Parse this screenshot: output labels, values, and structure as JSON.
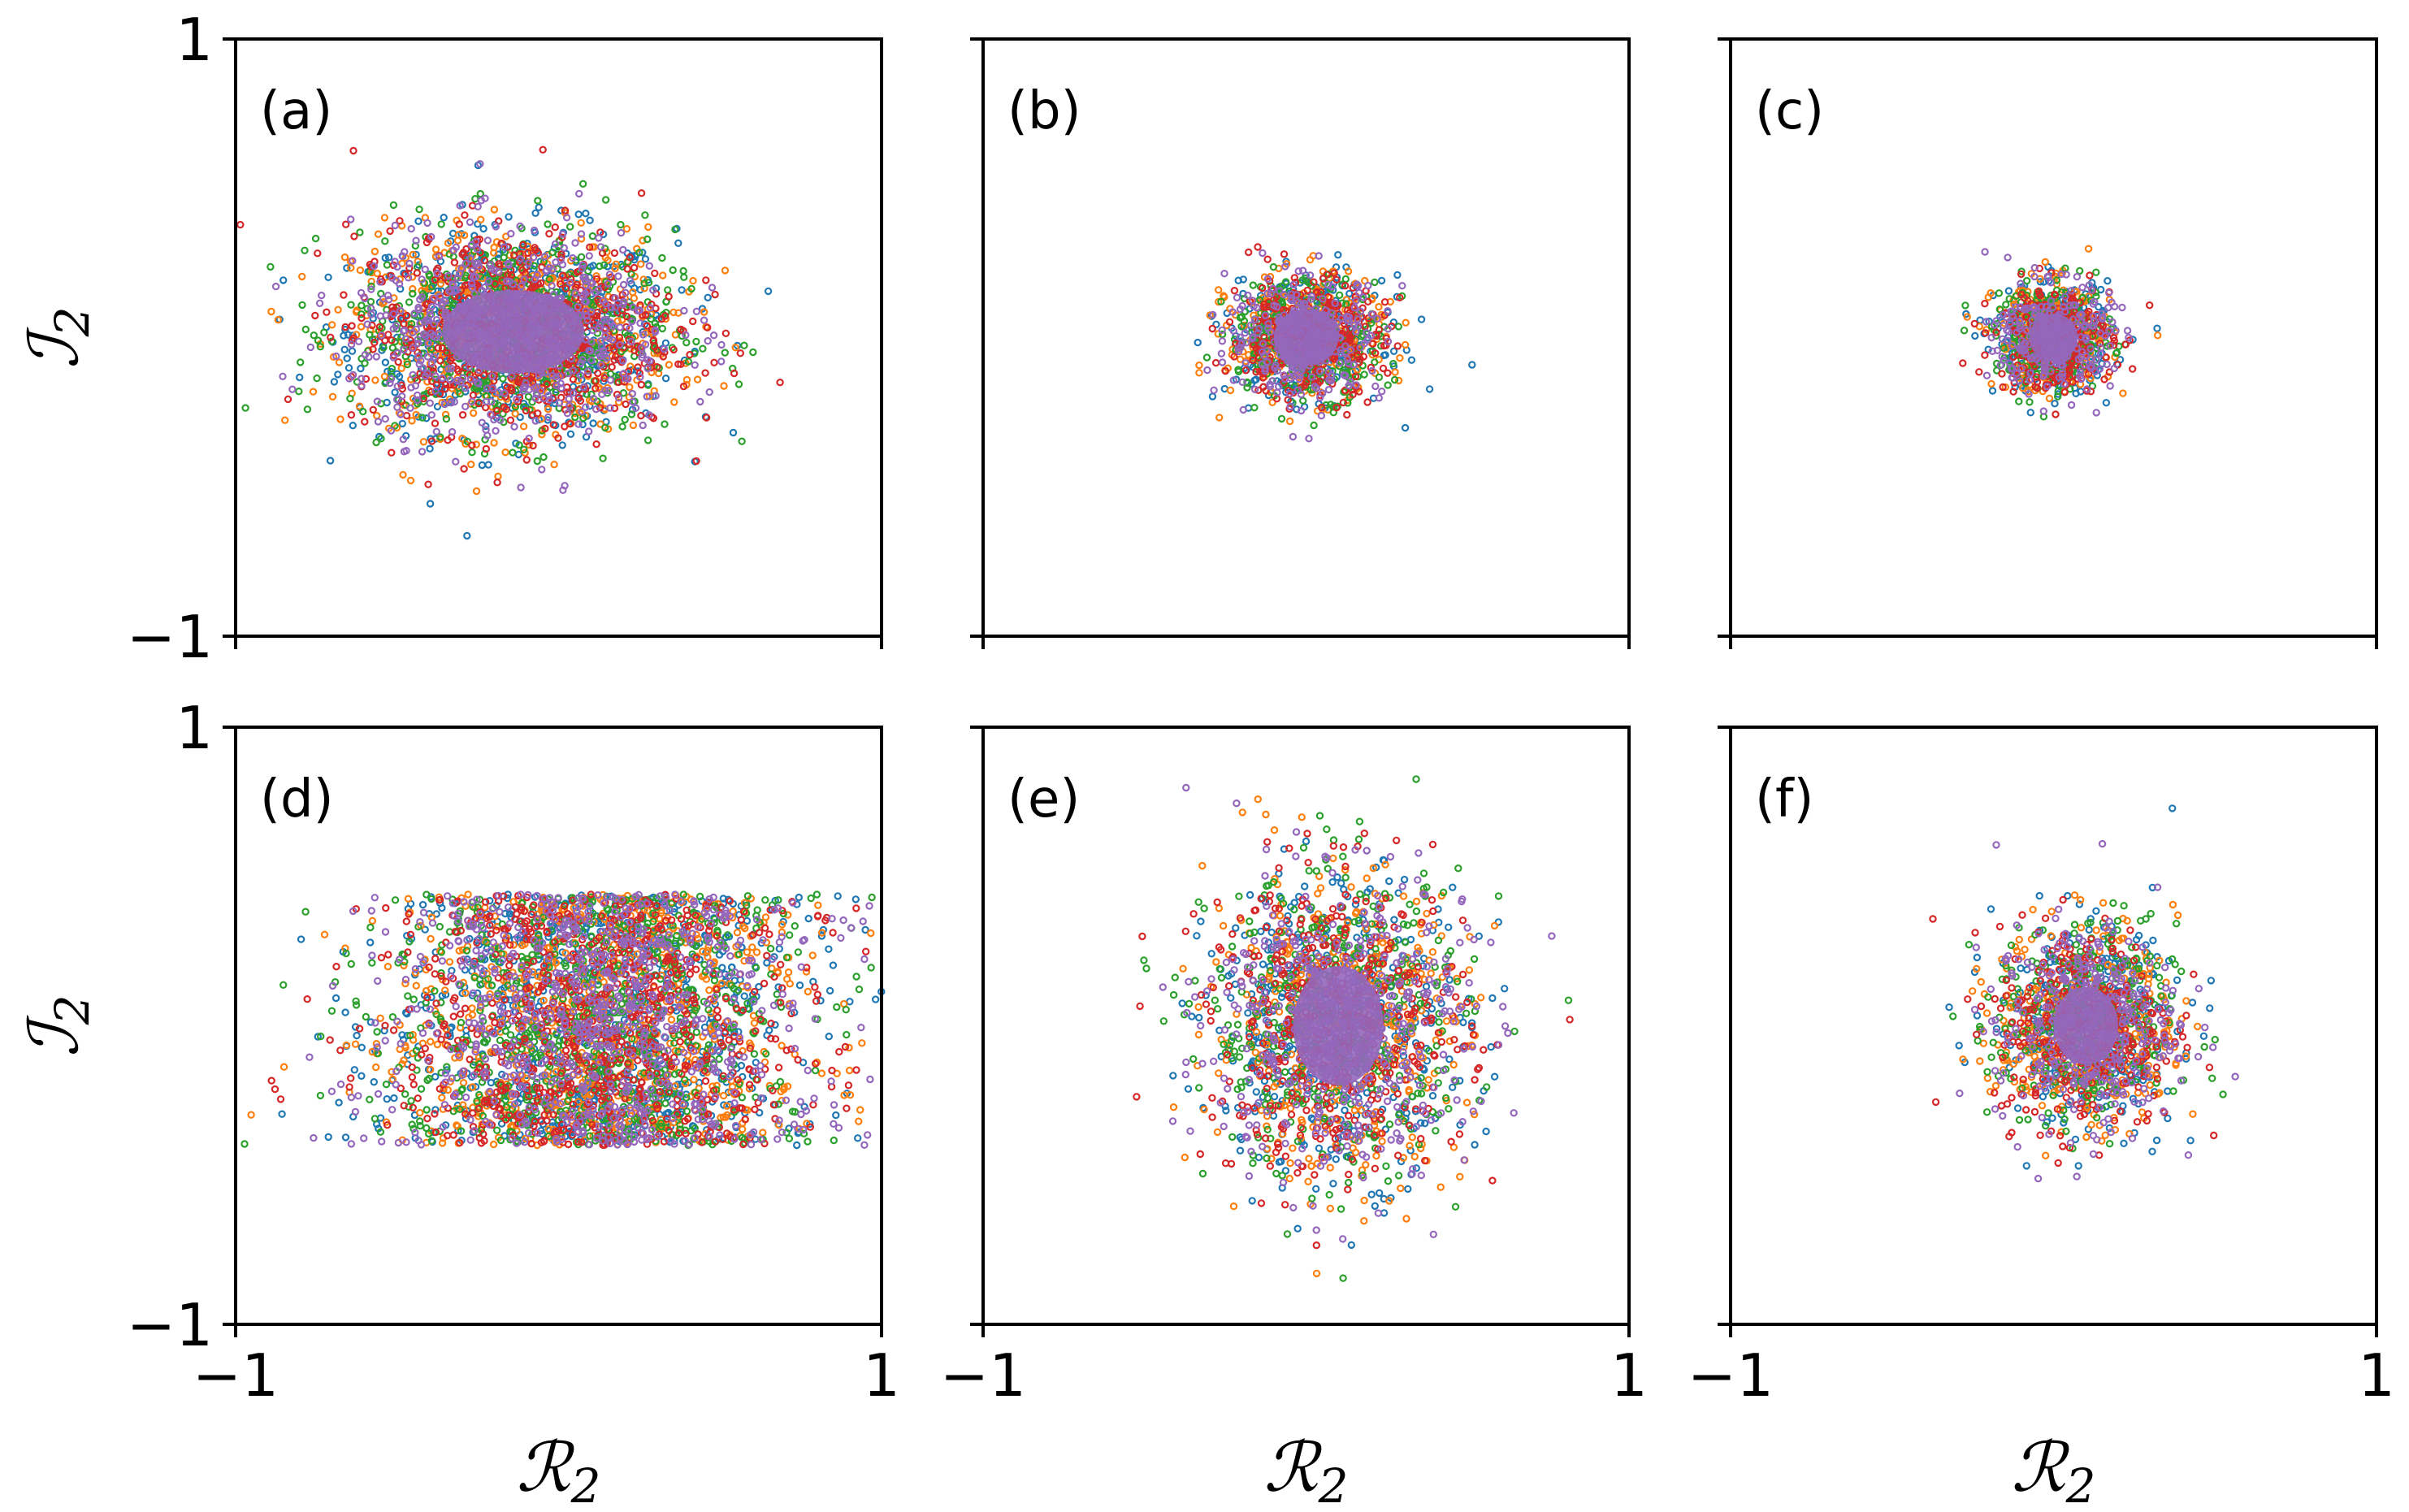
{
  "colors": {
    "palette": [
      "#1f77b4",
      "#ff7f0e",
      "#2ca02c",
      "#d62728",
      "#9467bd"
    ]
  },
  "chart_data": [
    {
      "panel_label": "(a)",
      "type": "scatter",
      "xlabel": "",
      "ylabel": "ℐ2",
      "xlim": [
        -1,
        1
      ],
      "ylim": [
        -1,
        1
      ],
      "x_ticks": [],
      "y_ticks": [
        "1",
        "−1"
      ],
      "series_estimate": {
        "center": [
          -0.14,
          0.02
        ],
        "spread": [
          0.25,
          0.17
        ],
        "core_fill": [
          0.22,
          0.14
        ],
        "points_per_series": 600
      }
    },
    {
      "panel_label": "(b)",
      "type": "scatter",
      "xlabel": "",
      "ylabel": "",
      "xlim": [
        -1,
        1
      ],
      "ylim": [
        -1,
        1
      ],
      "x_ticks": [],
      "y_ticks": [],
      "series_estimate": {
        "center": [
          0.0,
          0.0
        ],
        "spread": [
          0.12,
          0.1
        ],
        "core_fill": [
          0.1,
          0.095
        ],
        "points_per_series": 300
      }
    },
    {
      "panel_label": "(c)",
      "type": "scatter",
      "xlabel": "",
      "ylabel": "",
      "xlim": [
        -1,
        1
      ],
      "ylim": [
        -1,
        1
      ],
      "x_ticks": [],
      "y_ticks": [],
      "series_estimate": {
        "center": [
          0.0,
          0.0
        ],
        "spread": [
          0.09,
          0.09
        ],
        "core_fill": [
          0.075,
          0.08
        ],
        "points_per_series": 250
      }
    },
    {
      "panel_label": "(d)",
      "type": "scatter",
      "xlabel": "ℛ2",
      "ylabel": "ℐ2",
      "xlim": [
        -1,
        1
      ],
      "ylim": [
        -1,
        1
      ],
      "x_ticks": [
        "−1",
        "1"
      ],
      "y_ticks": [
        "1",
        "−1"
      ],
      "series_estimate": {
        "center": [
          0.12,
          0.02
        ],
        "spread": [
          0.38,
          0.42
        ],
        "core_fill": [
          0,
          0
        ],
        "points_per_series": 800
      }
    },
    {
      "panel_label": "(e)",
      "type": "scatter",
      "xlabel": "ℛ2",
      "ylabel": "",
      "xlim": [
        -1,
        1
      ],
      "ylim": [
        -1,
        1
      ],
      "x_ticks": [
        "−1",
        "1"
      ],
      "y_ticks": [],
      "series_estimate": {
        "center": [
          0.1,
          0.0
        ],
        "spread": [
          0.2,
          0.25
        ],
        "core_fill": [
          0.14,
          0.2
        ],
        "points_per_series": 450
      }
    },
    {
      "panel_label": "(f)",
      "type": "scatter",
      "xlabel": "ℛ2",
      "ylabel": "",
      "xlim": [
        -1,
        1
      ],
      "ylim": [
        -1,
        1
      ],
      "x_ticks": [
        "−1",
        "1"
      ],
      "y_ticks": [],
      "series_estimate": {
        "center": [
          0.1,
          0.0
        ],
        "spread": [
          0.14,
          0.17
        ],
        "core_fill": [
          0.1,
          0.13
        ],
        "points_per_series": 350
      }
    }
  ]
}
